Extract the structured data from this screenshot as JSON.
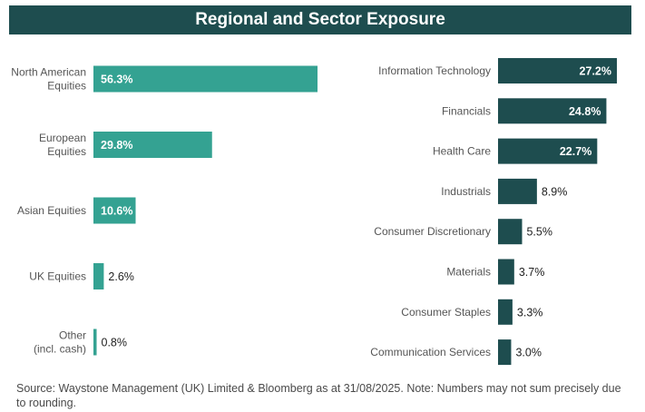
{
  "header": {
    "title": "Regional and Sector Exposure"
  },
  "colors": {
    "header_bg": "#1e4d4f",
    "regional_bar": "#34a292",
    "sector_bar": "#1e4d4f",
    "label_text": "#555555",
    "value_text": "#222222"
  },
  "chart_data": [
    {
      "type": "bar",
      "orientation": "horizontal",
      "categories": [
        [
          "North American",
          "Equities"
        ],
        [
          "European",
          "Equities"
        ],
        [
          "Asian Equities"
        ],
        [
          "UK Equities"
        ],
        [
          "Other",
          "(incl. cash)"
        ]
      ],
      "values": [
        56.3,
        29.8,
        10.6,
        2.6,
        0.8
      ],
      "value_labels": [
        "56.3%",
        "29.8%",
        "10.6%",
        "2.6%",
        "0.8%"
      ],
      "unit": "%"
    },
    {
      "type": "bar",
      "orientation": "horizontal",
      "categories": [
        [
          "Information Technology"
        ],
        [
          "Financials"
        ],
        [
          "Health Care"
        ],
        [
          "Industrials"
        ],
        [
          "Consumer Discretionary"
        ],
        [
          "Materials"
        ],
        [
          "Consumer Staples"
        ],
        [
          "Communication Services"
        ]
      ],
      "values": [
        27.2,
        24.8,
        22.7,
        8.9,
        5.5,
        3.7,
        3.3,
        3.0
      ],
      "value_labels": [
        "27.2%",
        "24.8%",
        "22.7%",
        "8.9%",
        "5.5%",
        "3.7%",
        "3.3%",
        "3.0%"
      ],
      "unit": "%"
    }
  ],
  "footer": {
    "source": "Source: Waystone Management (UK) Limited & Bloomberg as at 31/08/2025. Note: Numbers may not sum precisely due to rounding."
  }
}
